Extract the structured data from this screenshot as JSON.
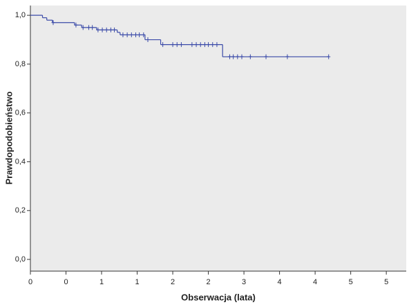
{
  "chart_data": {
    "type": "km-step",
    "xlabel": "Obserwacja (lata)",
    "ylabel": "Prawdopodobieństwo",
    "color": "#3a4aa8",
    "background": "#ebebeb",
    "x": [
      0,
      0.17,
      0.23,
      0.31,
      0.62,
      0.72,
      0.93,
      1.22,
      1.26,
      1.61,
      1.83,
      2.7,
      4.19
    ],
    "values": [
      1.0,
      0.99,
      0.98,
      0.97,
      0.96,
      0.95,
      0.94,
      0.93,
      0.92,
      0.9,
      0.88,
      0.83,
      0.83
    ],
    "censored_x": [
      0.32,
      0.64,
      0.74,
      0.82,
      0.87,
      0.95,
      1.01,
      1.07,
      1.13,
      1.18,
      1.3,
      1.36,
      1.42,
      1.48,
      1.53,
      1.59,
      1.65,
      1.86,
      2.0,
      2.06,
      2.12,
      2.27,
      2.33,
      2.39,
      2.45,
      2.5,
      2.56,
      2.62,
      2.8,
      2.85,
      2.91,
      2.97,
      3.09,
      3.31,
      3.61,
      4.19
    ],
    "censored_values": [
      0.97,
      0.96,
      0.95,
      0.95,
      0.95,
      0.94,
      0.94,
      0.94,
      0.94,
      0.94,
      0.92,
      0.92,
      0.92,
      0.92,
      0.92,
      0.92,
      0.9,
      0.88,
      0.88,
      0.88,
      0.88,
      0.88,
      0.88,
      0.88,
      0.88,
      0.88,
      0.88,
      0.88,
      0.83,
      0.83,
      0.83,
      0.83,
      0.83,
      0.83,
      0.83,
      0.83
    ],
    "xlim": [
      0,
      5.28
    ],
    "ylim": [
      -0.048,
      1.04
    ],
    "xticks": [
      {
        "value": 0,
        "label": "0"
      },
      {
        "value": 0.5,
        "label": "0"
      },
      {
        "value": 1,
        "label": "1"
      },
      {
        "value": 1.5,
        "label": "1"
      },
      {
        "value": 2,
        "label": "2"
      },
      {
        "value": 2.5,
        "label": "2"
      },
      {
        "value": 3,
        "label": "3"
      },
      {
        "value": 3.5,
        "label": "4"
      },
      {
        "value": 4,
        "label": "4"
      },
      {
        "value": 4.5,
        "label": "5"
      },
      {
        "value": 5,
        "label": "5"
      }
    ],
    "yticks": [
      {
        "value": 0,
        "label": "0,0"
      },
      {
        "value": 0.2,
        "label": "0,2"
      },
      {
        "value": 0.4,
        "label": "0,4"
      },
      {
        "value": 0.6,
        "label": "0,6"
      },
      {
        "value": 0.8,
        "label": "0,8"
      },
      {
        "value": 1.0,
        "label": "1,0"
      }
    ]
  }
}
